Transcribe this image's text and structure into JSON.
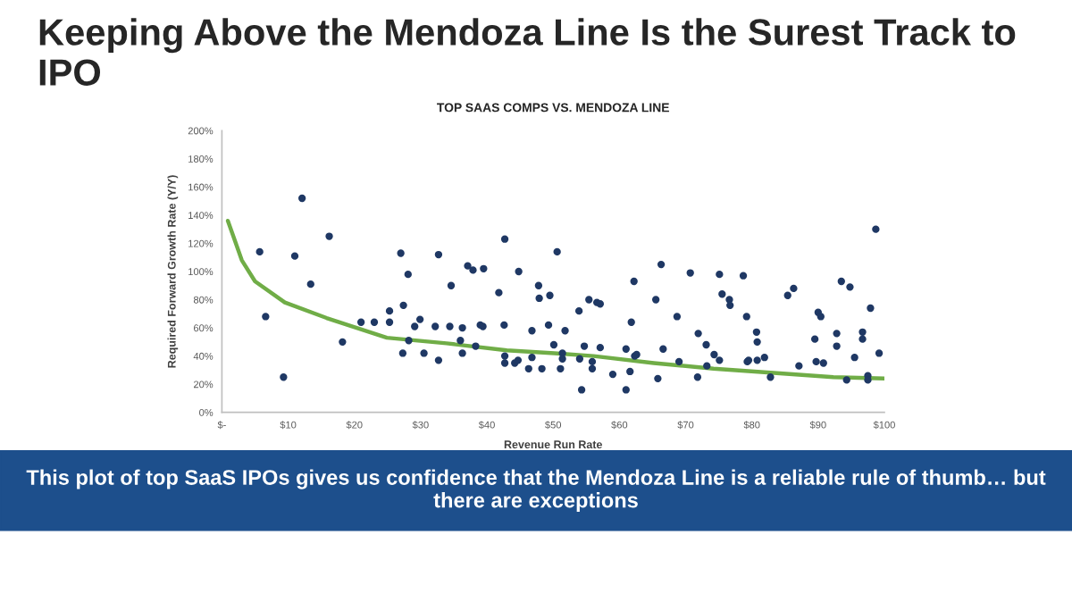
{
  "chart_data": {
    "type": "scatter",
    "title": "Keeping Above the Mendoza Line Is the Surest Track to IPO",
    "subtitle": "TOP SAAS COMPS VS. MENDOZA LINE",
    "xlabel": "Revenue Run Rate",
    "ylabel": "Required Forward Growth Rate (Y/Y)",
    "annotations": [
      "This plot of top SaaS IPOs gives us confidence that the Mendoza Line is a reliable rule of thumb… but there are exceptions"
    ],
    "xlim": [
      0,
      100
    ],
    "xticks": [
      {
        "value": 0,
        "label": "$-"
      },
      {
        "value": 10,
        "label": "$10"
      },
      {
        "value": 20,
        "label": "$20"
      },
      {
        "value": 30,
        "label": "$30"
      },
      {
        "value": 40,
        "label": "$40"
      },
      {
        "value": 50,
        "label": "$50"
      },
      {
        "value": 60,
        "label": "$60"
      },
      {
        "value": 70,
        "label": "$70"
      },
      {
        "value": 80,
        "label": "$80"
      },
      {
        "value": 90,
        "label": "$90"
      },
      {
        "value": 100,
        "label": "$100"
      }
    ],
    "ylim": [
      0,
      200
    ],
    "yticks": [
      {
        "value": 0,
        "label": "0%"
      },
      {
        "value": 20,
        "label": "20%"
      },
      {
        "value": 40,
        "label": "40%"
      },
      {
        "value": 60,
        "label": "60%"
      },
      {
        "value": 80,
        "label": "80%"
      },
      {
        "value": 100,
        "label": "100%"
      },
      {
        "value": 120,
        "label": "120%"
      },
      {
        "value": 140,
        "label": "140%"
      },
      {
        "value": 160,
        "label": "160%"
      },
      {
        "value": 180,
        "label": "180%"
      },
      {
        "value": 200,
        "label": "200%"
      }
    ],
    "grid": false,
    "legend": false,
    "marker": "circle",
    "series": [
      {
        "color": "#1f3864",
        "x": [
          5.7,
          6.6,
          9.3,
          11.0,
          12.1,
          13.4,
          16.2,
          18.2,
          21.0,
          23.0,
          25.3,
          25.3,
          27.0,
          27.4,
          27.3,
          28.1,
          28.2,
          29.1,
          29.9,
          30.5,
          32.2,
          32.7,
          32.7,
          34.6,
          34.4,
          36.0,
          36.3,
          36.3,
          37.1,
          37.9,
          38.3,
          39.0,
          39.4,
          39.5,
          41.8,
          42.7,
          42.6,
          42.7,
          42.7,
          44.2,
          44.7,
          44.8,
          46.3,
          46.8,
          46.8,
          47.8,
          47.9,
          48.3,
          49.3,
          49.5,
          50.1,
          50.6,
          51.1,
          51.4,
          51.4,
          51.8,
          53.9,
          54.0,
          54.3,
          54.7,
          55.4,
          55.9,
          55.9,
          56.6,
          57.1,
          57.1,
          59.0,
          61.0,
          61.0,
          61.6,
          61.8,
          62.2,
          62.3,
          62.6,
          65.5,
          65.8,
          66.3,
          66.6,
          68.7,
          69.0,
          70.7,
          71.8,
          71.9,
          73.1,
          73.2,
          74.3,
          75.1,
          75.1,
          75.5,
          76.6,
          76.7,
          78.7,
          79.2,
          79.3,
          79.5,
          80.7,
          80.8,
          80.8,
          81.9,
          82.8,
          85.4,
          86.3,
          87.1,
          89.5,
          89.7,
          90.0,
          90.4,
          90.8,
          92.8,
          92.8,
          93.5,
          94.3,
          94.8,
          95.5,
          96.7,
          96.7,
          97.5,
          97.5,
          97.9,
          98.7,
          99.2
        ],
        "values": [
          114,
          68,
          25,
          111,
          152,
          91,
          125,
          50,
          64,
          64,
          72,
          64,
          113,
          76,
          42,
          98,
          51,
          61,
          66,
          42,
          61,
          112,
          37,
          90,
          61,
          51,
          60,
          42,
          104,
          101,
          47,
          62,
          61,
          102,
          85,
          123,
          62,
          40,
          35,
          35,
          37,
          100,
          31,
          58,
          39,
          90,
          81,
          31,
          62,
          83,
          48,
          114,
          31,
          42,
          38,
          58,
          72,
          38,
          16,
          47,
          80,
          36,
          31,
          78,
          77,
          46,
          27,
          45,
          16,
          29,
          64,
          93,
          40,
          41,
          80,
          24,
          105,
          45,
          68,
          36,
          99,
          25,
          56,
          48,
          33,
          41,
          37,
          98,
          84,
          80,
          76,
          97,
          68,
          36,
          37,
          57,
          50,
          37,
          39,
          25,
          83,
          88,
          33,
          52,
          36,
          71,
          68,
          35,
          56,
          47,
          93,
          23,
          89,
          39,
          57,
          52,
          26,
          23,
          74,
          130,
          42
        ]
      },
      {
        "type": "line",
        "color": "#70ad47",
        "marker": "none",
        "x": [
          0.9,
          1.5,
          3.0,
          5.0,
          9.5,
          15.8,
          24.9,
          33.9,
          43.0,
          50.2,
          56.1,
          65.2,
          74.2,
          83.3,
          92.3,
          100
        ],
        "values": [
          136,
          128,
          108,
          93,
          78,
          67,
          53,
          49,
          44,
          42,
          40,
          35,
          31,
          28,
          25,
          24
        ]
      }
    ]
  }
}
